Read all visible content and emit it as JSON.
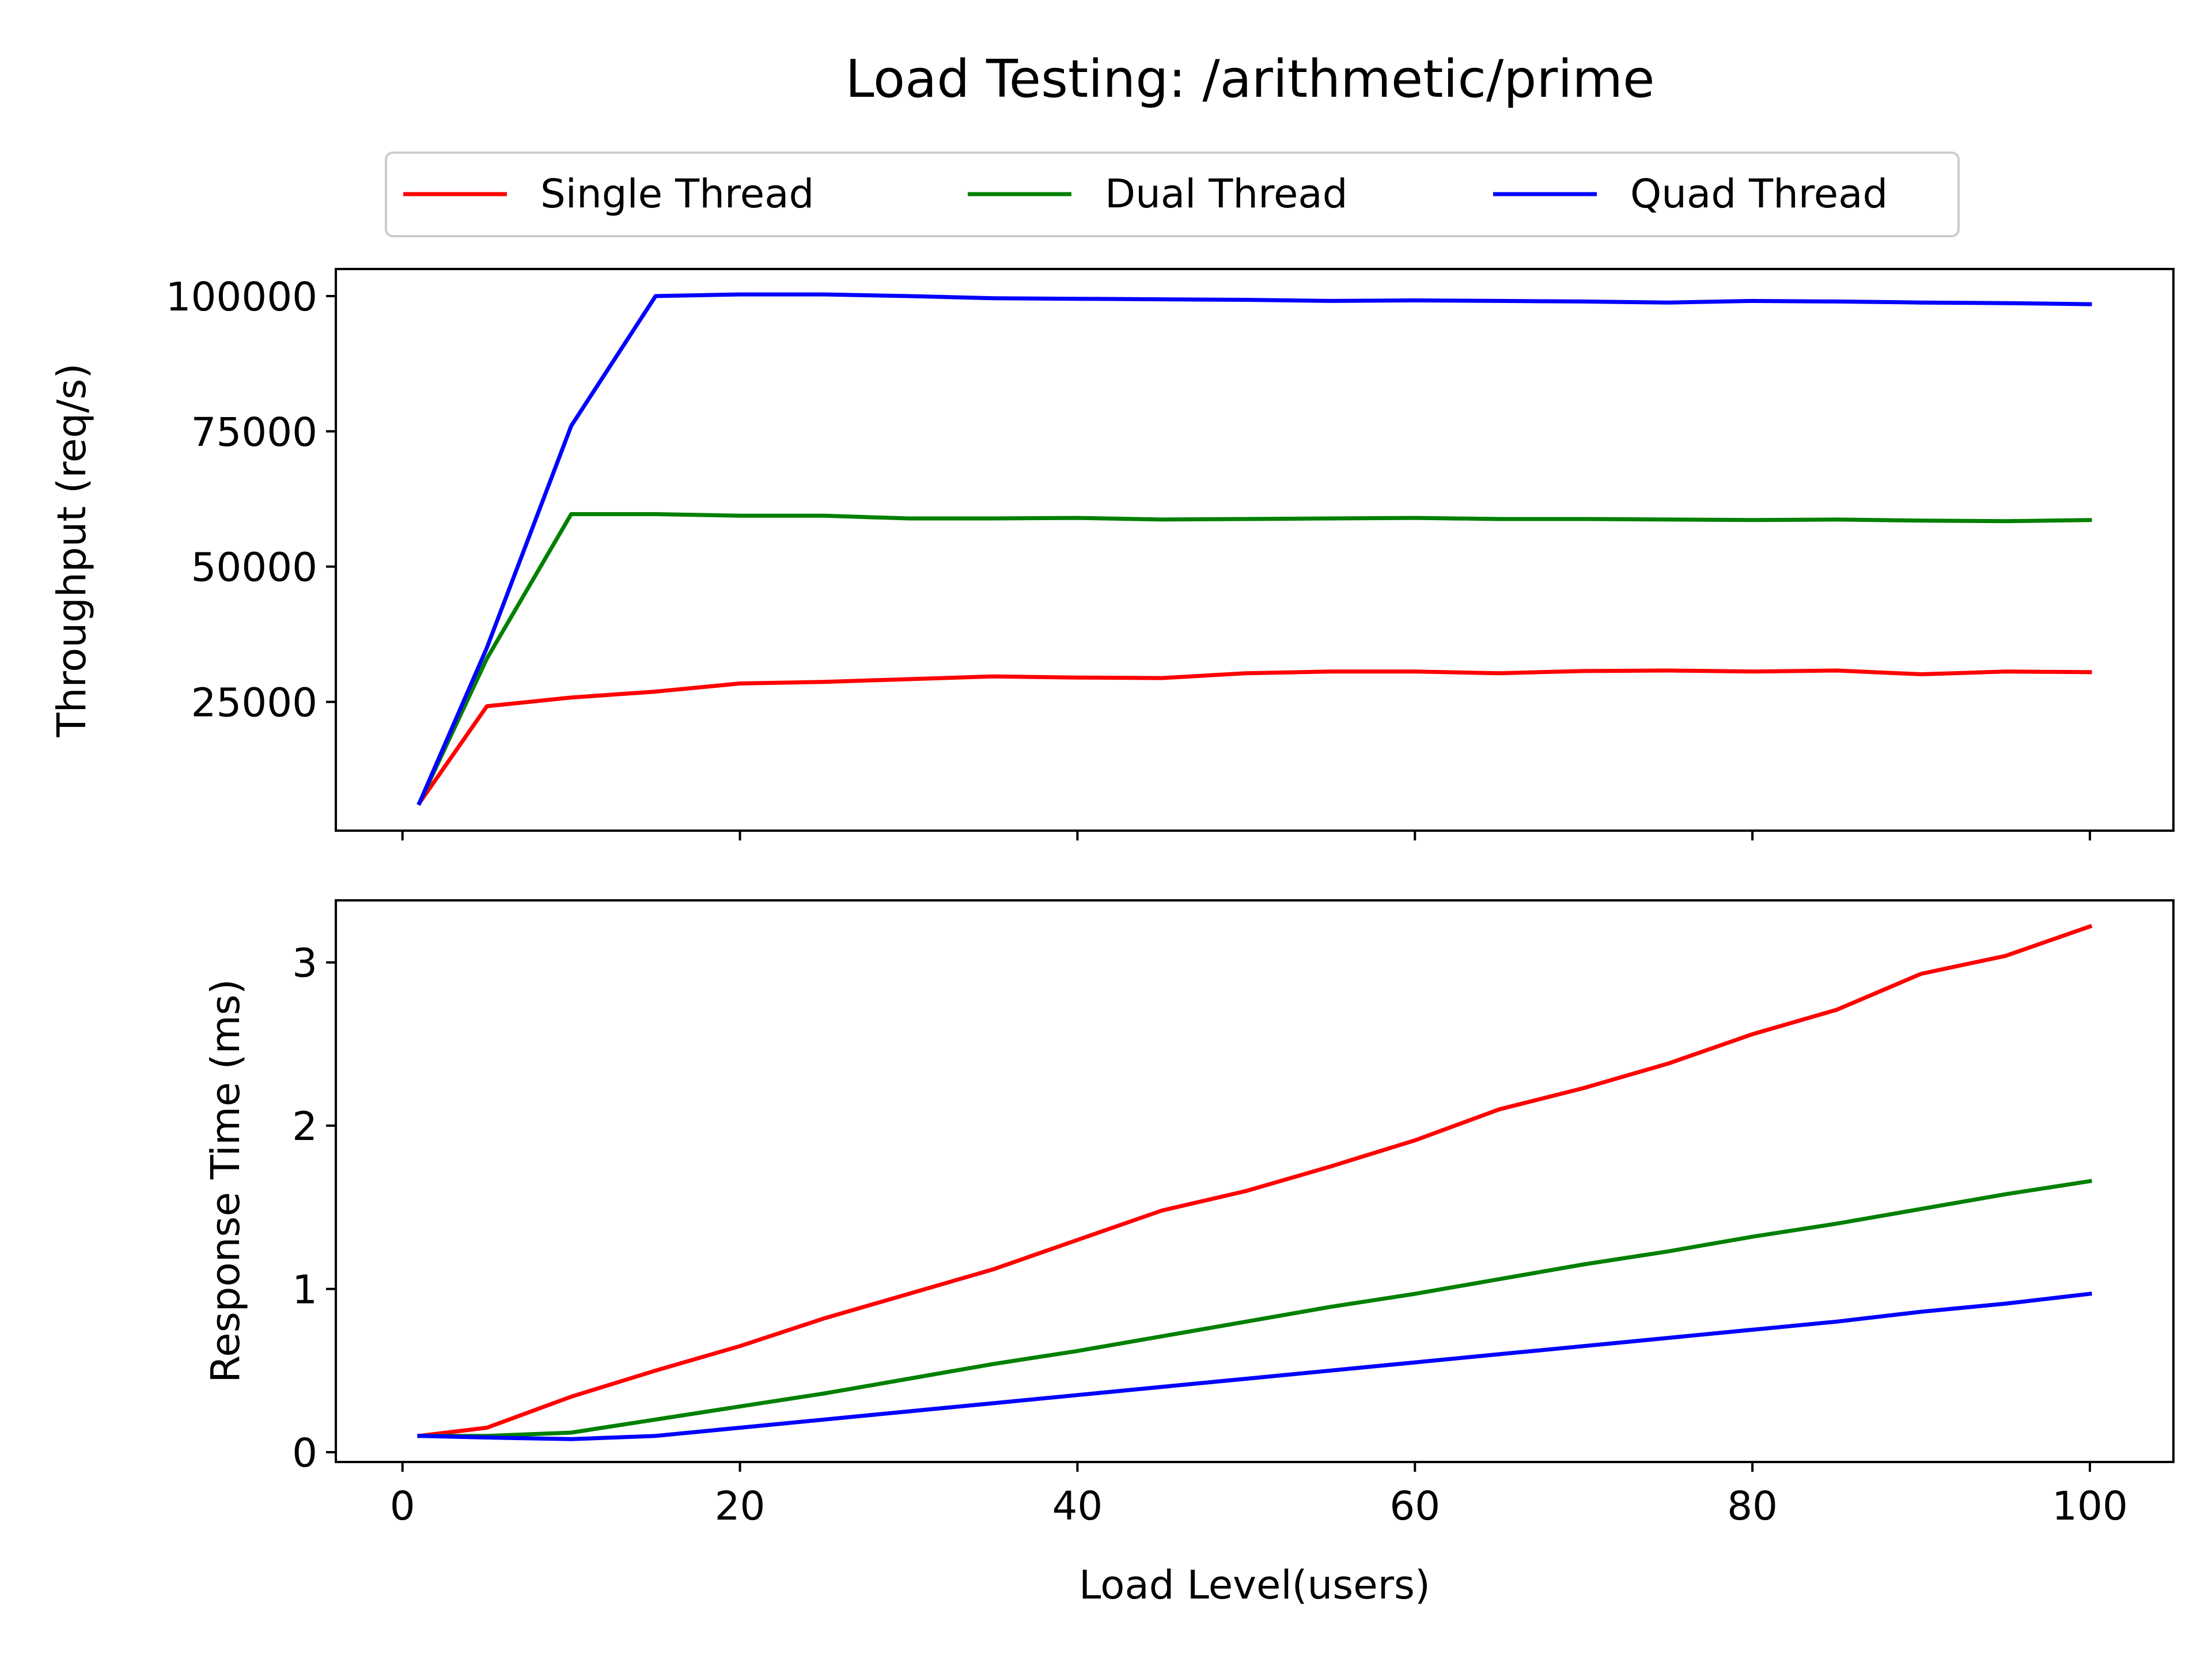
{
  "chart_data": {
    "title": "Load Testing: /arithmetic/prime",
    "legend": {
      "placement": "top-center",
      "entries": [
        {
          "label": "Single Thread",
          "color": "#ff0000"
        },
        {
          "label": "Dual Thread",
          "color": "#008000"
        },
        {
          "label": "Quad Thread",
          "color": "#0000ff"
        }
      ]
    },
    "x": [
      1,
      5,
      10,
      15,
      20,
      25,
      30,
      35,
      40,
      45,
      50,
      55,
      60,
      65,
      70,
      75,
      80,
      85,
      90,
      95,
      100
    ],
    "xlabel": "Load Level(users)",
    "xlim": [
      -3.95,
      104.95
    ],
    "xticks": [
      0,
      20,
      40,
      60,
      80,
      100
    ],
    "xtick_labels": [
      "0",
      "20",
      "40",
      "60",
      "80",
      "100"
    ],
    "shared_x": true,
    "grid": false,
    "subplots": [
      {
        "type": "line",
        "ylabel": "Throughput (req/s)",
        "ylim": [
          1200,
          105000
        ],
        "yticks": [
          25000,
          50000,
          75000,
          100000
        ],
        "ytick_labels": [
          "25000",
          "50000",
          "75000",
          "100000"
        ],
        "series": [
          {
            "name": "Single Thread",
            "color": "#ff0000",
            "values": [
              6300,
              24200,
              25800,
              26900,
              28400,
              28700,
              29200,
              29700,
              29500,
              29400,
              30300,
              30600,
              30600,
              30300,
              30700,
              30800,
              30600,
              30800,
              30100,
              30600,
              30500
            ]
          },
          {
            "name": "Dual Thread",
            "color": "#008000",
            "values": [
              6300,
              33000,
              59700,
              59700,
              59400,
              59400,
              58900,
              58900,
              59000,
              58700,
              58800,
              58900,
              59000,
              58800,
              58800,
              58700,
              58600,
              58700,
              58500,
              58400,
              58600
            ]
          },
          {
            "name": "Quad Thread",
            "color": "#0000ff",
            "values": [
              6300,
              35000,
              76000,
              100000,
              100300,
              100300,
              100000,
              99600,
              99500,
              99400,
              99300,
              99100,
              99200,
              99100,
              99000,
              98800,
              99100,
              99000,
              98800,
              98700,
              98500
            ]
          }
        ]
      },
      {
        "type": "line",
        "ylabel": "Response Time (ms)",
        "ylim": [
          -0.06,
          3.38
        ],
        "yticks": [
          0,
          1,
          2,
          3
        ],
        "ytick_labels": [
          "0",
          "1",
          "2",
          "3"
        ],
        "series": [
          {
            "name": "Single Thread",
            "color": "#ff0000",
            "values": [
              0.1,
              0.15,
              0.34,
              0.5,
              0.65,
              0.82,
              0.97,
              1.12,
              1.3,
              1.48,
              1.6,
              1.75,
              1.91,
              2.1,
              2.23,
              2.38,
              2.56,
              2.71,
              2.93,
              3.04,
              3.22
            ]
          },
          {
            "name": "Dual Thread",
            "color": "#008000",
            "values": [
              0.1,
              0.1,
              0.12,
              0.2,
              0.28,
              0.36,
              0.45,
              0.54,
              0.62,
              0.71,
              0.8,
              0.89,
              0.97,
              1.06,
              1.15,
              1.23,
              1.32,
              1.4,
              1.49,
              1.58,
              1.66
            ]
          },
          {
            "name": "Quad Thread",
            "color": "#0000ff",
            "values": [
              0.1,
              0.09,
              0.08,
              0.1,
              0.15,
              0.2,
              0.25,
              0.3,
              0.35,
              0.4,
              0.45,
              0.5,
              0.55,
              0.6,
              0.65,
              0.7,
              0.75,
              0.8,
              0.86,
              0.91,
              0.97
            ]
          }
        ]
      }
    ]
  }
}
